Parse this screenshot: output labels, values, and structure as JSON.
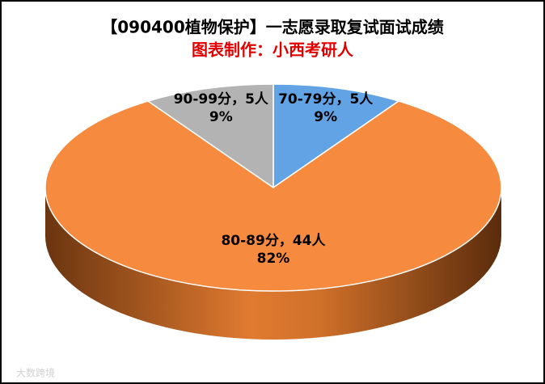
{
  "chart_data": {
    "type": "pie",
    "title": "【090400植物保护】一志愿录取复试面试成绩",
    "subtitle": "图表制作：小西考研人",
    "categories": [
      "70-79分",
      "80-89分",
      "90-99分"
    ],
    "values": [
      5,
      44,
      5
    ],
    "value_labels": [
      "5人",
      "44人",
      "5人"
    ],
    "label_separator": "，",
    "percentages": [
      9,
      82,
      9
    ],
    "percentage_labels": [
      "9%",
      "82%",
      "9%"
    ],
    "colors": [
      "#62a3e6",
      "#f68a3e",
      "#b3b3b3"
    ],
    "watermark": "大数跨境"
  }
}
